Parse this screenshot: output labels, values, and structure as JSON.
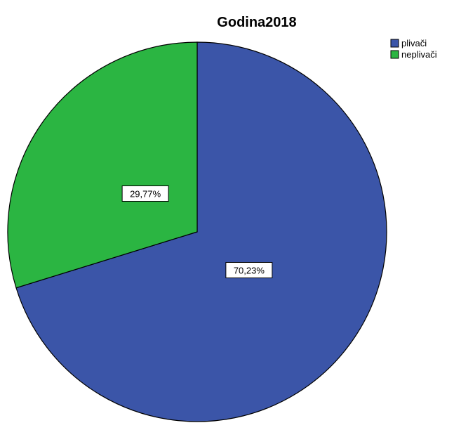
{
  "chart_data": {
    "type": "pie",
    "title": "Godina2018",
    "categories": [
      "plivači",
      "neplivači"
    ],
    "values": [
      70.23,
      29.77
    ],
    "data_labels": [
      "70,23%",
      "29,77%"
    ],
    "colors": [
      "#3b55a8",
      "#2bb542"
    ],
    "start_angle_deg": 0,
    "direction": "clockwise",
    "legend": {
      "position": "top-right",
      "entries": [
        "plivači",
        "neplivači"
      ]
    }
  }
}
